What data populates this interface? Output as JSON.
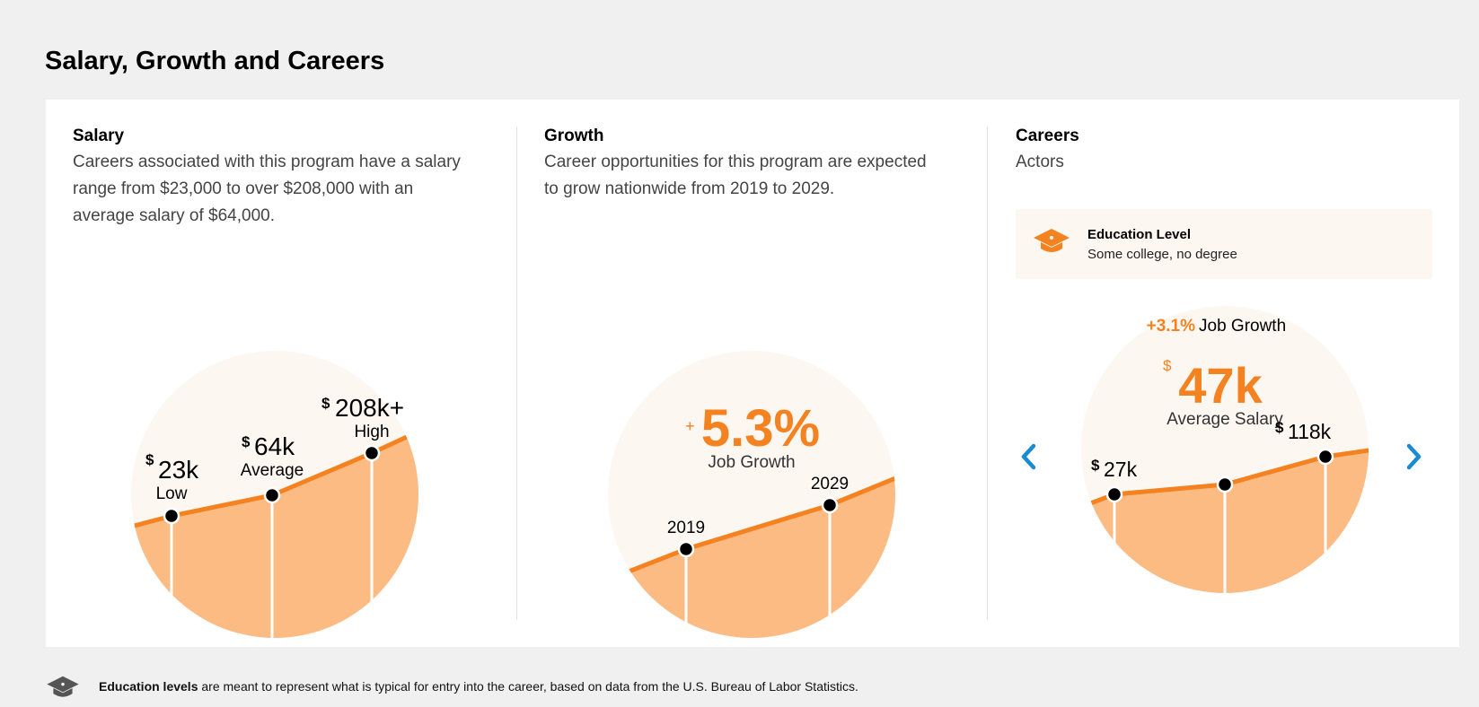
{
  "page": {
    "title": "Salary, Growth and Careers"
  },
  "colors": {
    "accent": "#f58220",
    "fill": "#fdbb84",
    "circle_bg": "#fdf7f2",
    "arrow": "#1a8bd1"
  },
  "salary": {
    "heading": "Salary",
    "description_lines": [
      "Careers associated with this program have a salary",
      "range from $23,000 to over $208,000 with an",
      "average salary of $64,000."
    ],
    "currency": "$",
    "points": [
      {
        "value": "23k",
        "label": "Low"
      },
      {
        "value": "64k",
        "label": "Average"
      },
      {
        "value": "208k+",
        "label": "High"
      }
    ]
  },
  "growth": {
    "heading": "Growth",
    "description_lines": [
      "Career opportunities for this program are expected",
      "to grow nationwide from 2019 to 2029."
    ],
    "sign": "+",
    "percent": "5.3%",
    "caption": "Job Growth",
    "start_year": "2019",
    "end_year": "2029"
  },
  "careers": {
    "heading": "Careers",
    "career_name": "Actors",
    "education_label": "Education Level",
    "education_value": "Some college, no degree",
    "growth_value": "+3.1%",
    "growth_caption": "Job Growth",
    "currency": "$",
    "avg_salary": "47k",
    "avg_caption": "Average Salary",
    "low": "27k",
    "high": "118k",
    "prev_icon": "chevron-left-icon",
    "next_icon": "chevron-right-icon"
  },
  "footer": {
    "bold_text": "Education levels",
    "rest_text": " are meant to represent what is typical for entry into the career, based on data from the U.S. Bureau of Labor Statistics."
  }
}
